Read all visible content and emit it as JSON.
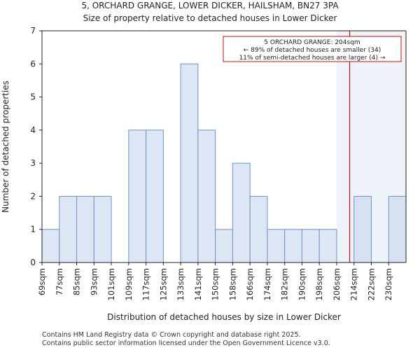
{
  "header": {
    "title_line1": "5, ORCHARD GRANGE, LOWER DICKER, HAILSHAM, BN27 3PA",
    "title_line2": "Size of property relative to detached houses in Lower Dicker"
  },
  "footer": {
    "line1": "Contains HM Land Registry data © Crown copyright and database right 2025.",
    "line2": "Contains public sector information licensed under the Open Government Licence v3.0."
  },
  "chart_data": {
    "type": "bar",
    "title": "5, ORCHARD GRANGE, LOWER DICKER, HAILSHAM, BN27 3PA — Size of property relative to detached houses in Lower Dicker",
    "xlabel": "Distribution of detached houses by size in Lower Dicker",
    "ylabel": "Number of detached properties",
    "ylim": [
      0,
      7
    ],
    "yticks": [
      0,
      1,
      2,
      3,
      4,
      5,
      6,
      7
    ],
    "categories": [
      "69sqm",
      "77sqm",
      "85sqm",
      "93sqm",
      "101sqm",
      "109sqm",
      "117sqm",
      "125sqm",
      "133sqm",
      "141sqm",
      "150sqm",
      "158sqm",
      "166sqm",
      "174sqm",
      "182sqm",
      "190sqm",
      "198sqm",
      "206sqm",
      "214sqm",
      "222sqm",
      "230sqm"
    ],
    "values": [
      1,
      2,
      2,
      2,
      0,
      4,
      4,
      0,
      6,
      4,
      1,
      3,
      2,
      1,
      1,
      1,
      1,
      0,
      2,
      0,
      2
    ],
    "marker": {
      "value_sqm": 204,
      "position_bins": 17.75
    },
    "highlight_from_bin": 17,
    "annotation": {
      "line1": "5 ORCHARD GRANGE: 204sqm",
      "line2": "← 89% of detached houses are smaller (34)",
      "line3": "11% of semi-detached houses are larger (4) →"
    },
    "colors": {
      "bar_fill": "#dce6f4",
      "bar_fill_highlight": "#d6e2f3",
      "bar_stroke": "#6f93c4",
      "highlight_bg": "#eef3fa",
      "marker": "#bb1111",
      "axis": "#222222"
    }
  }
}
